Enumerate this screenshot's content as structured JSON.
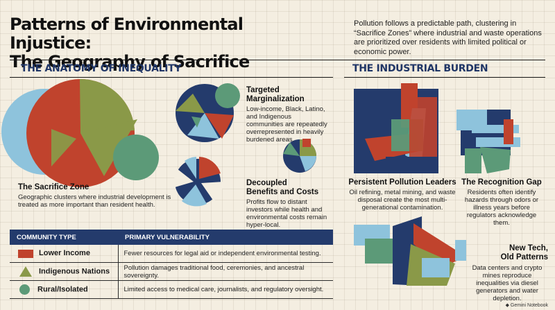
{
  "header": {
    "title_line1": "Patterns of Environmental Injustice:",
    "title_line2": "The Geography of Sacrifice",
    "intro": "Pollution follows a predictable path, clustering in “Sacrifice Zones” where industrial and waste operations are prioritized over residents with limited political or economic power."
  },
  "anatomy": {
    "heading": "THE ANATOMY OF INEQUALITY",
    "sacrifice_zone": {
      "title": "The Sacrifice Zone",
      "text": "Geographic clusters where industrial development is treated as more important than resident health."
    },
    "targeted": {
      "title_line1": "Targeted",
      "title_line2": "Marginalization",
      "text": "Low-income, Black, Latino, and Indigenous communities are repeatedly overrepresented in heavily burdened areas."
    },
    "decoupled": {
      "title_line1": "Decoupled",
      "title_line2": "Benefits and Costs",
      "text": "Profits flow to distant investors while health and environmental costs remain hyper-local."
    }
  },
  "table": {
    "col1": "COMMUNITY TYPE",
    "col2": "PRIMARY VULNERABILITY",
    "rows": [
      {
        "type": "Lower Income",
        "symbol": "red-square",
        "vulnerability": "Fewer resources for legal aid or independent environmental testing."
      },
      {
        "type": "Indigenous Nations",
        "symbol": "olive-triangle",
        "vulnerability": "Pollution damages traditional food, ceremonies, and ancestral sovereignty."
      },
      {
        "type": "Rural/Isolated",
        "symbol": "green-circle",
        "vulnerability": "Limited access to medical care, journalists, and regulatory oversight."
      }
    ]
  },
  "industrial": {
    "heading": "THE INDUSTRIAL BURDEN",
    "leaders": {
      "title": "Persistent Pollution Leaders",
      "text": "Oil refining, metal mining, and waste disposal create the most multi-generational contamination."
    },
    "gap": {
      "title": "The Recognition Gap",
      "text": "Residents often identify hazards through odors or illness years before regulators acknowledge them."
    },
    "newtech": {
      "title_line1": "New Tech,",
      "title_line2": "Old Patterns",
      "text": "Data centers and crypto mines reproduce inequalities via diesel generators and water depletion."
    }
  },
  "brand": "Gemini Notebook",
  "colors": {
    "navy": "#243b6c",
    "red": "#c0432d",
    "olive": "#8a9948",
    "green": "#5c9a78",
    "sky": "#8ec3dc",
    "cream": "#f4eee1"
  }
}
